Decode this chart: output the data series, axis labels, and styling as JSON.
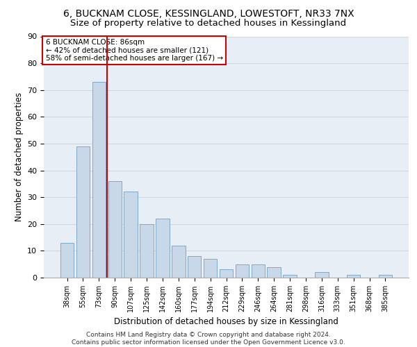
{
  "title_line1": "6, BUCKNAM CLOSE, KESSINGLAND, LOWESTOFT, NR33 7NX",
  "title_line2": "Size of property relative to detached houses in Kessingland",
  "xlabel": "Distribution of detached houses by size in Kessingland",
  "ylabel": "Number of detached properties",
  "categories": [
    "38sqm",
    "55sqm",
    "73sqm",
    "90sqm",
    "107sqm",
    "125sqm",
    "142sqm",
    "160sqm",
    "177sqm",
    "194sqm",
    "212sqm",
    "229sqm",
    "246sqm",
    "264sqm",
    "281sqm",
    "298sqm",
    "316sqm",
    "333sqm",
    "351sqm",
    "368sqm",
    "385sqm"
  ],
  "values": [
    13,
    49,
    73,
    36,
    32,
    20,
    22,
    12,
    8,
    7,
    3,
    5,
    5,
    4,
    1,
    0,
    2,
    0,
    1,
    0,
    1
  ],
  "bar_color": "#c8d8e8",
  "bar_edgecolor": "#7fa8c8",
  "vline_index": 2,
  "vline_color": "#cc0000",
  "annotation_text": "6 BUCKNAM CLOSE: 86sqm\n← 42% of detached houses are smaller (121)\n58% of semi-detached houses are larger (167) →",
  "annotation_box_color": "#ffffff",
  "annotation_box_edgecolor": "#cc0000",
  "ylim": [
    0,
    90
  ],
  "yticks": [
    0,
    10,
    20,
    30,
    40,
    50,
    60,
    70,
    80,
    90
  ],
  "grid_color": "#d0d8e0",
  "background_color": "#e8eef5",
  "footer_text": "Contains HM Land Registry data © Crown copyright and database right 2024.\nContains public sector information licensed under the Open Government Licence v3.0.",
  "title_fontsize": 10,
  "subtitle_fontsize": 9.5,
  "tick_fontsize": 7,
  "xlabel_fontsize": 8.5,
  "ylabel_fontsize": 8.5,
  "annotation_fontsize": 7.5,
  "footer_fontsize": 6.5
}
